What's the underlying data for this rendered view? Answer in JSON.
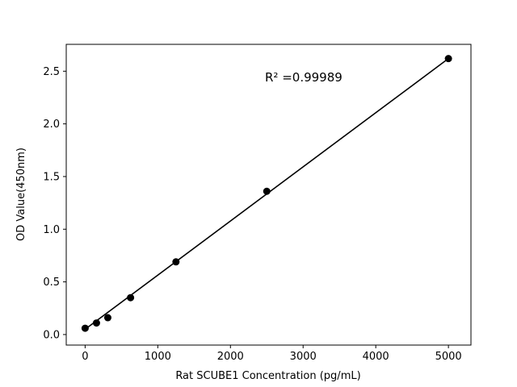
{
  "chart_data": {
    "type": "scatter",
    "title": "",
    "xlabel": "Rat SCUBE1 Concentration (pg/mL)",
    "ylabel": "OD Value(450nm)",
    "annotation": "R² =0.99989",
    "x": [
      0,
      156,
      312,
      625,
      1250,
      2500,
      5000
    ],
    "y": [
      0.06,
      0.11,
      0.16,
      0.35,
      0.69,
      1.36,
      2.62
    ],
    "fit_line": {
      "x": [
        0,
        5000
      ],
      "y": [
        0.05,
        2.62
      ]
    },
    "xlim": [
      -260,
      5310
    ],
    "ylim": [
      -0.1,
      2.755
    ],
    "xticks": [
      0,
      1000,
      2000,
      3000,
      4000,
      5000
    ],
    "xtick_labels": [
      "0",
      "1000",
      "2000",
      "3000",
      "4000",
      "5000"
    ],
    "ytick_values": [
      0,
      0.5,
      1.0,
      1.5,
      2.0,
      2.5
    ],
    "ytick_labels": [
      "0.0",
      "0.5",
      "1.0",
      "1.5",
      "2.0",
      "2.5"
    ],
    "grid": false,
    "legend": "none",
    "marker_color": "#000000",
    "line_color": "#000000",
    "axis_color": "#000000",
    "background_color": "#ffffff"
  }
}
